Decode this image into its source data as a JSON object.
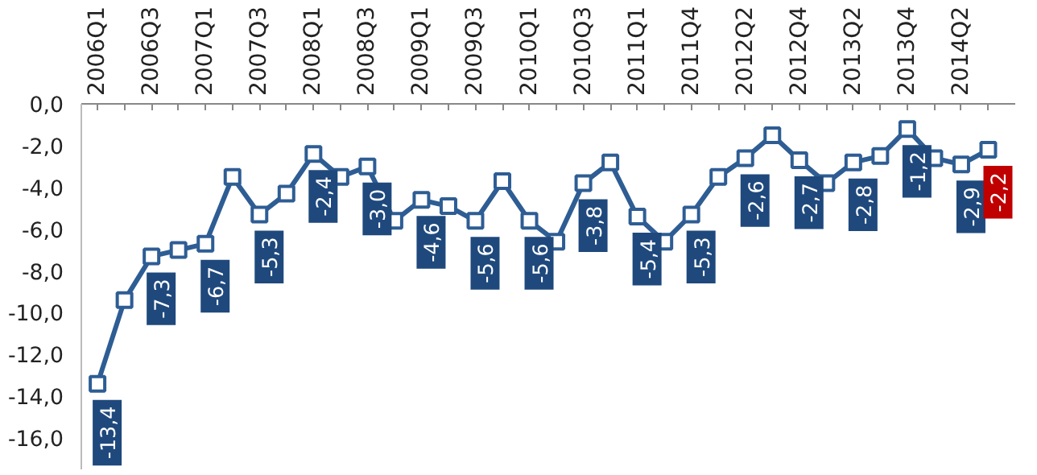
{
  "chart_data": {
    "type": "line",
    "categories": [
      "2006Q1",
      null,
      "2006Q3",
      null,
      "2007Q1",
      null,
      "2007Q3",
      null,
      "2008Q1",
      null,
      "2008Q3",
      null,
      "2009Q1",
      null,
      "2009Q3",
      null,
      "2010Q1",
      null,
      "2010Q3",
      null,
      "2011Q1",
      null,
      "2011Q4",
      null,
      "2012Q2",
      null,
      "2012Q4",
      null,
      "2013Q2",
      null,
      "2013Q4",
      null,
      "2014Q2",
      null
    ],
    "series": [
      {
        "color": "#2e5d94",
        "values": [
          -13.4,
          -9.4,
          -7.3,
          -7.0,
          -6.7,
          -3.5,
          -5.3,
          -4.3,
          -2.4,
          -3.5,
          -3.0,
          -5.6,
          -4.6,
          -4.9,
          -5.6,
          -3.7,
          -5.6,
          -6.6,
          -3.8,
          -2.8,
          -5.4,
          -6.6,
          -5.3,
          -3.5,
          -2.6,
          -1.5,
          -2.7,
          -3.8,
          -2.8,
          -2.5,
          -1.2,
          -2.6,
          -2.9,
          -2.2
        ],
        "value_labels": [
          "-13,4",
          null,
          "-7,3",
          null,
          "-6,7",
          null,
          "-5,3",
          null,
          "-2,4",
          null,
          "-3,0",
          null,
          "-4,6",
          null,
          "-5,6",
          null,
          "-5,6",
          null,
          "-3,8",
          null,
          "-5,4",
          null,
          "-5,3",
          null,
          "-2,6",
          null,
          "-2,7",
          null,
          "-2,8",
          null,
          "-1,2",
          null,
          "-2,9",
          "-2,2"
        ]
      }
    ],
    "ylim": [
      -17.5,
      0
    ],
    "yticks": [
      {
        "value": 0,
        "label": "0,0"
      },
      {
        "value": -2,
        "label": "-2,0"
      },
      {
        "value": -4,
        "label": "-4,0"
      },
      {
        "value": -6,
        "label": "-6,0"
      },
      {
        "value": -8,
        "label": "-8,0"
      },
      {
        "value": -10,
        "label": "-10,0"
      },
      {
        "value": -12,
        "label": "-12,0"
      },
      {
        "value": -14,
        "label": "-14,0"
      },
      {
        "value": -16,
        "label": "-16,0"
      }
    ],
    "grid": false,
    "marker": "square",
    "line_style": "solid"
  }
}
